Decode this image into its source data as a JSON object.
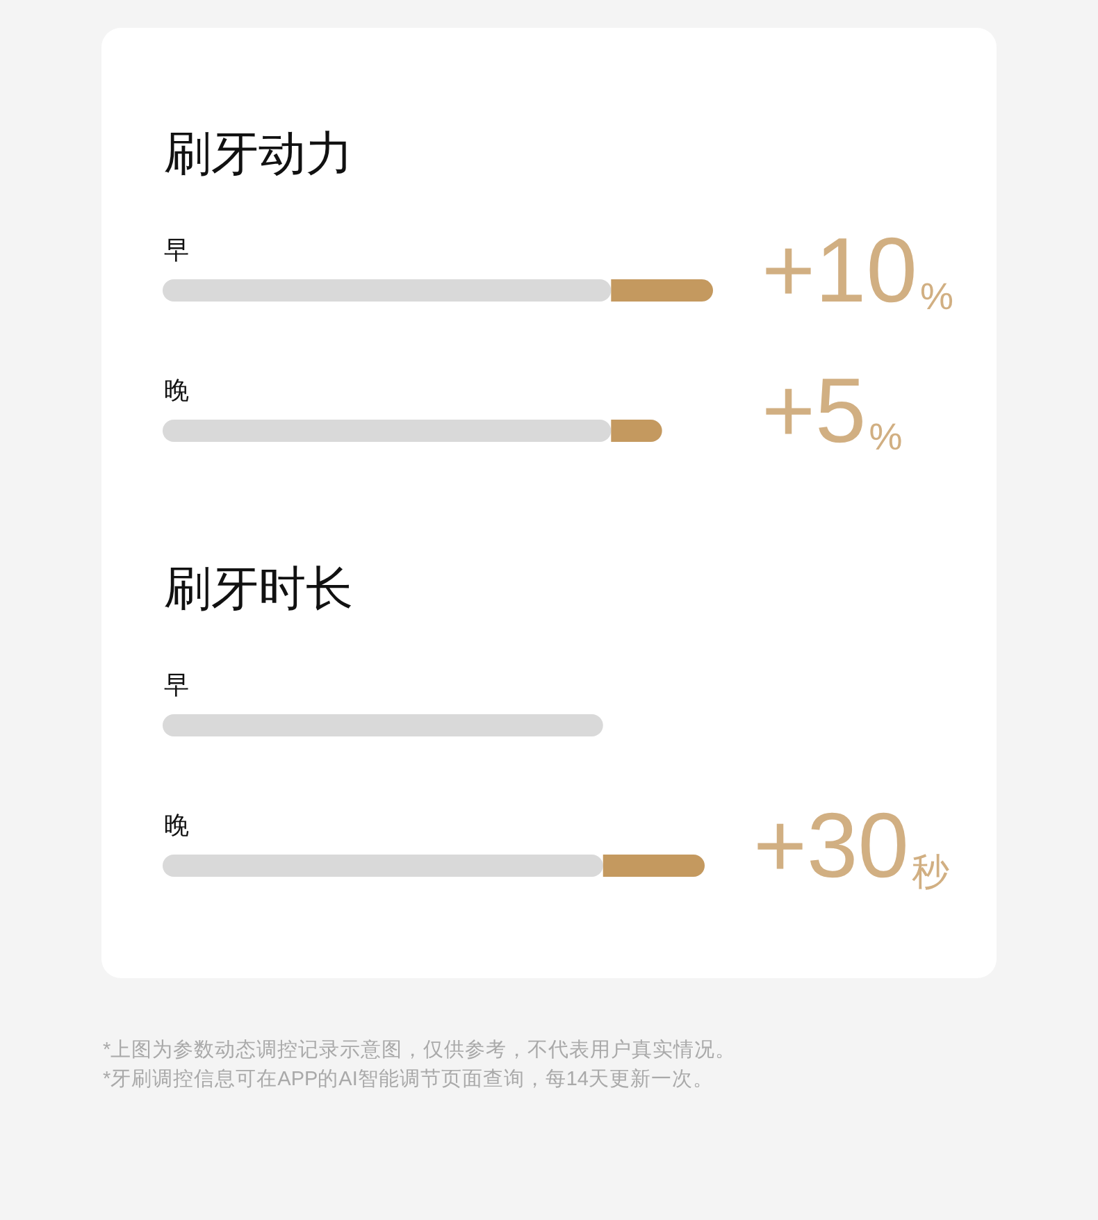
{
  "chart_data": [
    {
      "type": "bar",
      "title": "刷牙动力",
      "orientation": "horizontal",
      "stacked": true,
      "tick_labels": "y",
      "categories": [
        "早",
        "晚"
      ],
      "xlim": [
        0,
        54
      ],
      "series": [
        {
          "color": "#d9d9d9",
          "values": [
            44,
            44
          ]
        },
        {
          "color": "#c4995f",
          "values": [
            10,
            5
          ],
          "value_labels": [
            "+10%",
            "+5%"
          ]
        }
      ]
    },
    {
      "type": "bar",
      "title": "刷牙时长",
      "orientation": "horizontal",
      "stacked": true,
      "tick_labels": "y",
      "categories": [
        "早",
        "晚"
      ],
      "xlim": [
        0,
        160
      ],
      "series": [
        {
          "color": "#d9d9d9",
          "values": [
            130,
            130
          ]
        },
        {
          "color": "#c4995f",
          "values": [
            null,
            30
          ],
          "value_labels": [
            null,
            "+30秒"
          ]
        }
      ],
      "annotations": [
        "*上图为参数动态调控记录示意图，仅供参考，不代表用户真实情况。",
        "*牙刷调控信息可在APP的AI智能调节页面查询，每14天更新一次。"
      ]
    }
  ]
}
